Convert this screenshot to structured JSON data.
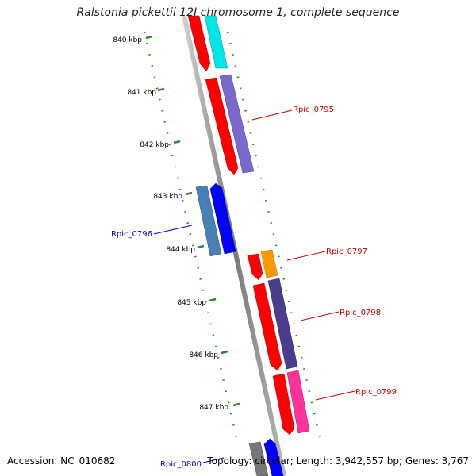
{
  "title": "Ralstonia pickettii 12J chromosome 1, complete sequence",
  "footer": {
    "accession": "Accession: NC_010682",
    "topology": "Topology: circular; Length: 3,942,557 bp; Genes: 3,767"
  },
  "ticks": [
    "840 kbp",
    "841 kbp",
    "842 kbp",
    "843 kbp",
    "844 kbp",
    "845 kbp",
    "846 kbp",
    "847 kbp"
  ],
  "gene_labels": [
    {
      "text": "Rpic_0795",
      "color": "#cc0000"
    },
    {
      "text": "Rpic_0796",
      "color": "#0000cc"
    },
    {
      "text": "Rpic_0797",
      "color": "#cc0000"
    },
    {
      "text": "Rpic_0798",
      "color": "#cc0000"
    },
    {
      "text": "Rpic_0799",
      "color": "#cc0000"
    },
    {
      "text": "Rpic_0800",
      "color": "#0000cc"
    }
  ],
  "colors": {
    "backbone": "#888888",
    "tick": "#2a8a2a",
    "cds_red": "#ff0000",
    "cyan": "#00e5e5",
    "purple": "#7b68cc",
    "steel_blue": "#4a7fb5",
    "blue": "#0000ff",
    "orange": "#ff9900",
    "dark_slate": "#4b3c8c",
    "magenta": "#ff3399",
    "gray": "#777777"
  }
}
